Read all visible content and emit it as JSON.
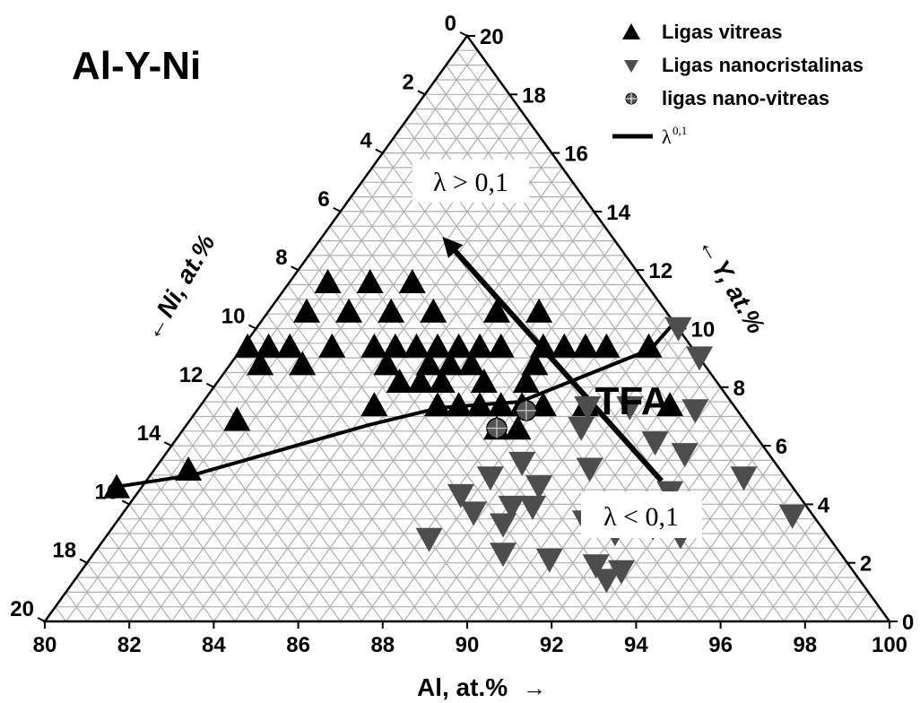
{
  "chart_data": {
    "type": "scatter",
    "subtype": "ternary",
    "system_title": "Al-Y-Ni",
    "axes": {
      "bottom": {
        "label": "Al, at.%",
        "arrow": "→",
        "range": [
          80,
          100
        ],
        "ticks": [
          "80",
          "82",
          "84",
          "86",
          "88",
          "90",
          "92",
          "94",
          "96",
          "98",
          "100"
        ]
      },
      "left": {
        "label": "Ni, at.%",
        "arrow": "←",
        "range": [
          0,
          20
        ],
        "ticks": [
          "0",
          "2",
          "4",
          "6",
          "8",
          "10",
          "12",
          "14",
          "16",
          "18",
          "20"
        ]
      },
      "right": {
        "label": "Y, at.%",
        "arrow": "←",
        "range": [
          0,
          20
        ],
        "ticks": [
          "0",
          "2",
          "4",
          "6",
          "8",
          "10",
          "12",
          "14",
          "16",
          "18",
          "20"
        ]
      }
    },
    "grid": true,
    "legend_position": "top-right",
    "legend": [
      {
        "label": "Ligas vitreas",
        "marker": "triangle-up"
      },
      {
        "label": "Ligas nanocristalinas",
        "marker": "triangle-down"
      },
      {
        "label": "ligas nano-vitreas",
        "marker": "circle-cross"
      },
      {
        "label": "λ",
        "superscript": "0,1",
        "marker": "line"
      }
    ],
    "annotations": {
      "lambda_high": "λ > 0,1",
      "lambda_low": "λ < 0,1",
      "tfa": "TFA"
    },
    "series": [
      {
        "name": "Ligas vitreas",
        "marker": "triangle-up",
        "color": "#000000",
        "points_ni_y": [
          [
            7.5,
            11.6
          ],
          [
            6.5,
            11.6
          ],
          [
            5.5,
            11.6
          ],
          [
            8.5,
            10.6
          ],
          [
            7.5,
            10.6
          ],
          [
            6.5,
            10.6
          ],
          [
            5.5,
            10.6
          ],
          [
            4.0,
            10.6
          ],
          [
            3.0,
            10.6
          ],
          [
            10.5,
            9.4
          ],
          [
            10.0,
            9.4
          ],
          [
            9.5,
            9.4
          ],
          [
            8.5,
            9.4
          ],
          [
            7.5,
            9.4
          ],
          [
            7.0,
            9.4
          ],
          [
            6.5,
            9.4
          ],
          [
            6.0,
            9.4
          ],
          [
            5.5,
            9.4
          ],
          [
            5.0,
            9.4
          ],
          [
            4.5,
            9.4
          ],
          [
            3.5,
            9.4
          ],
          [
            3.0,
            9.4
          ],
          [
            2.5,
            9.4
          ],
          [
            2.0,
            9.4
          ],
          [
            1.0,
            9.4
          ],
          [
            10.5,
            8.8
          ],
          [
            9.5,
            8.8
          ],
          [
            7.5,
            8.8
          ],
          [
            6.5,
            8.8
          ],
          [
            6.0,
            8.8
          ],
          [
            5.5,
            8.8
          ],
          [
            4.0,
            8.8
          ],
          [
            7.5,
            8.2
          ],
          [
            7.0,
            8.2
          ],
          [
            6.5,
            8.2
          ],
          [
            5.5,
            8.2
          ],
          [
            4.5,
            8.2
          ],
          [
            8.5,
            7.4
          ],
          [
            7.0,
            7.4
          ],
          [
            6.5,
            7.4
          ],
          [
            6.0,
            7.4
          ],
          [
            5.5,
            7.4
          ],
          [
            5.0,
            7.4
          ],
          [
            4.5,
            7.4
          ],
          [
            3.5,
            7.4
          ],
          [
            1.5,
            7.4
          ],
          [
            6.0,
            6.6
          ],
          [
            5.5,
            6.6
          ],
          [
            12.0,
            6.9
          ],
          [
            14.0,
            5.2
          ],
          [
            16.0,
            4.6
          ]
        ]
      },
      {
        "name": "Ligas nanocristalinas",
        "marker": "triangle-down",
        "color": "#4d4d4d",
        "points_ni_y": [
          [
            0.0,
            10.0
          ],
          [
            0.0,
            9.0
          ],
          [
            3.5,
            7.3
          ],
          [
            2.5,
            7.3
          ],
          [
            1.0,
            7.2
          ],
          [
            4.0,
            6.6
          ],
          [
            2.5,
            6.1
          ],
          [
            2.0,
            5.7
          ],
          [
            6.0,
            5.4
          ],
          [
            4.5,
            5.2
          ],
          [
            3.0,
            4.4
          ],
          [
            1.0,
            4.9
          ],
          [
            0.5,
            3.6
          ],
          [
            7.0,
            4.9
          ],
          [
            6.0,
            4.6
          ],
          [
            6.5,
            3.9
          ],
          [
            5.5,
            3.4
          ],
          [
            8.0,
            4.3
          ],
          [
            8.0,
            3.7
          ],
          [
            7.5,
            3.3
          ],
          [
            7.0,
            3.9
          ],
          [
            4.0,
            3.2
          ],
          [
            9.5,
            2.8
          ],
          [
            8.0,
            2.3
          ],
          [
            7.0,
            2.1
          ],
          [
            5.0,
            3.0
          ],
          [
            3.5,
            2.9
          ],
          [
            6.0,
            1.9
          ],
          [
            5.5,
            1.7
          ],
          [
            6.0,
            1.4
          ]
        ]
      },
      {
        "name": "ligas nano-vitreas",
        "marker": "circle-cross",
        "color": "#333333",
        "points_ni_y": [
          [
            5.0,
            7.2
          ],
          [
            6.0,
            6.6
          ]
        ]
      }
    ],
    "boundary_line_ni_y": [
      [
        16.0,
        4.6
      ],
      [
        14.0,
        5.0
      ],
      [
        9.0,
        6.7
      ],
      [
        7.0,
        7.3
      ],
      [
        5.0,
        7.5
      ],
      [
        1.0,
        9.3
      ],
      [
        0.0,
        10.2
      ]
    ],
    "arrow_ni_y": {
      "from": [
        3.0,
        4.8
      ],
      "to": [
        4.0,
        13.0
      ]
    }
  }
}
